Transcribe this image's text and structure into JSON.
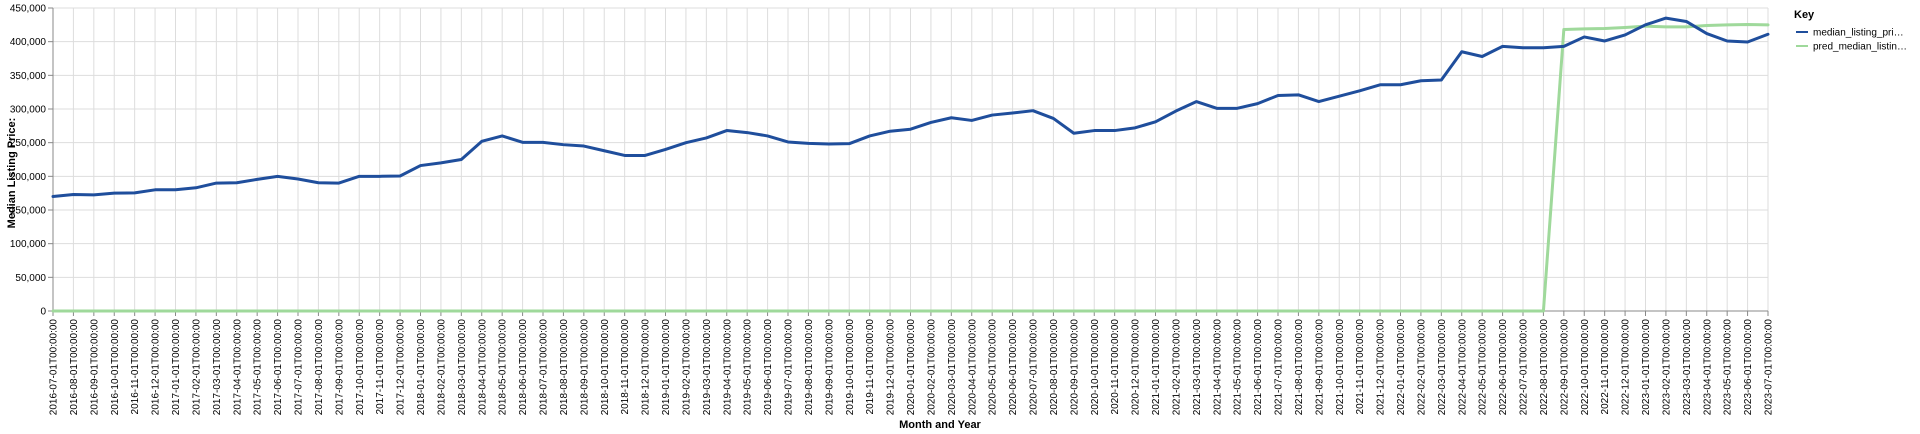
{
  "chart_data": {
    "type": "line",
    "xlabel": "Month and Year",
    "ylabel": "Median Listing Price:",
    "ylim": [
      0,
      450000
    ],
    "yticks": [
      0,
      50000,
      100000,
      150000,
      200000,
      250000,
      300000,
      350000,
      400000,
      450000
    ],
    "ytick_labels": [
      "0",
      "50,000",
      "100,000",
      "150,000",
      "200,000",
      "250,000",
      "300,000",
      "350,000",
      "400,000",
      "450,000"
    ],
    "grid": true,
    "legend": {
      "title": "Key",
      "placement": "top-right"
    },
    "x": [
      "2016-07-01T00:00:00",
      "2016-08-01T00:00:00",
      "2016-09-01T00:00:00",
      "2016-10-01T00:00:00",
      "2016-11-01T00:00:00",
      "2016-12-01T00:00:00",
      "2017-01-01T00:00:00",
      "2017-02-01T00:00:00",
      "2017-03-01T00:00:00",
      "2017-04-01T00:00:00",
      "2017-05-01T00:00:00",
      "2017-06-01T00:00:00",
      "2017-07-01T00:00:00",
      "2017-08-01T00:00:00",
      "2017-09-01T00:00:00",
      "2017-10-01T00:00:00",
      "2017-11-01T00:00:00",
      "2017-12-01T00:00:00",
      "2018-01-01T00:00:00",
      "2018-02-01T00:00:00",
      "2018-03-01T00:00:00",
      "2018-04-01T00:00:00",
      "2018-05-01T00:00:00",
      "2018-06-01T00:00:00",
      "2018-07-01T00:00:00",
      "2018-08-01T00:00:00",
      "2018-09-01T00:00:00",
      "2018-10-01T00:00:00",
      "2018-11-01T00:00:00",
      "2018-12-01T00:00:00",
      "2019-01-01T00:00:00",
      "2019-02-01T00:00:00",
      "2019-03-01T00:00:00",
      "2019-04-01T00:00:00",
      "2019-05-01T00:00:00",
      "2019-06-01T00:00:00",
      "2019-07-01T00:00:00",
      "2019-08-01T00:00:00",
      "2019-09-01T00:00:00",
      "2019-10-01T00:00:00",
      "2019-11-01T00:00:00",
      "2019-12-01T00:00:00",
      "2020-01-01T00:00:00",
      "2020-02-01T00:00:00",
      "2020-03-01T00:00:00",
      "2020-04-01T00:00:00",
      "2020-05-01T00:00:00",
      "2020-06-01T00:00:00",
      "2020-07-01T00:00:00",
      "2020-08-01T00:00:00",
      "2020-09-01T00:00:00",
      "2020-10-01T00:00:00",
      "2020-11-01T00:00:00",
      "2020-12-01T00:00:00",
      "2021-01-01T00:00:00",
      "2021-02-01T00:00:00",
      "2021-03-01T00:00:00",
      "2021-04-01T00:00:00",
      "2021-05-01T00:00:00",
      "2021-06-01T00:00:00",
      "2021-07-01T00:00:00",
      "2021-08-01T00:00:00",
      "2021-09-01T00:00:00",
      "2021-10-01T00:00:00",
      "2021-11-01T00:00:00",
      "2021-12-01T00:00:00",
      "2022-01-01T00:00:00",
      "2022-02-01T00:00:00",
      "2022-03-01T00:00:00",
      "2022-04-01T00:00:00",
      "2022-05-01T00:00:00",
      "2022-06-01T00:00:00",
      "2022-07-01T00:00:00",
      "2022-08-01T00:00:00",
      "2022-09-01T00:00:00",
      "2022-10-01T00:00:00",
      "2022-11-01T00:00:00",
      "2022-12-01T00:00:00",
      "2023-01-01T00:00:00",
      "2023-02-01T00:00:00",
      "2023-03-01T00:00:00",
      "2023-04-01T00:00:00",
      "2023-05-01T00:00:00",
      "2023-06-01T00:00:00",
      "2023-07-01T00:00:00"
    ],
    "series": [
      {
        "name": "median_listing_pri…",
        "color": "#1f4e9c",
        "values": [
          170000,
          173000,
          172500,
          175000,
          175500,
          180000,
          180000,
          183000,
          190000,
          190500,
          195500,
          200000,
          196000,
          190500,
          190000,
          200000,
          200000,
          200500,
          216000,
          220000,
          225000,
          252000,
          260000,
          250500,
          250500,
          247000,
          245000,
          238000,
          231000,
          231000,
          240000,
          250000,
          257000,
          268000,
          265000,
          260000,
          251000,
          249000,
          248000,
          248500,
          260000,
          267000,
          270000,
          280000,
          287000,
          283000,
          291000,
          294000,
          297500,
          286000,
          264000,
          268000,
          268000,
          272000,
          281000,
          297000,
          311000,
          301000,
          301000,
          308000,
          320000,
          321000,
          311000,
          319000,
          327000,
          336000,
          336000,
          342000,
          343000,
          385000,
          378000,
          393000,
          391000,
          391000,
          393000,
          407000,
          401000,
          410000,
          425000,
          435000,
          430000,
          412000,
          401000,
          399500,
          411000
        ]
      },
      {
        "name": "pred_median_listin…",
        "color": "#9fd99b",
        "values": [
          0,
          0,
          0,
          0,
          0,
          0,
          0,
          0,
          0,
          0,
          0,
          0,
          0,
          0,
          0,
          0,
          0,
          0,
          0,
          0,
          0,
          0,
          0,
          0,
          0,
          0,
          0,
          0,
          0,
          0,
          0,
          0,
          0,
          0,
          0,
          0,
          0,
          0,
          0,
          0,
          0,
          0,
          0,
          0,
          0,
          0,
          0,
          0,
          0,
          0,
          0,
          0,
          0,
          0,
          0,
          0,
          0,
          0,
          0,
          0,
          0,
          0,
          0,
          0,
          0,
          0,
          0,
          0,
          0,
          0,
          0,
          0,
          0,
          0,
          418000,
          419000,
          419500,
          421000,
          423000,
          422000,
          422000,
          424000,
          425000,
          425500,
          425000
        ]
      }
    ]
  }
}
